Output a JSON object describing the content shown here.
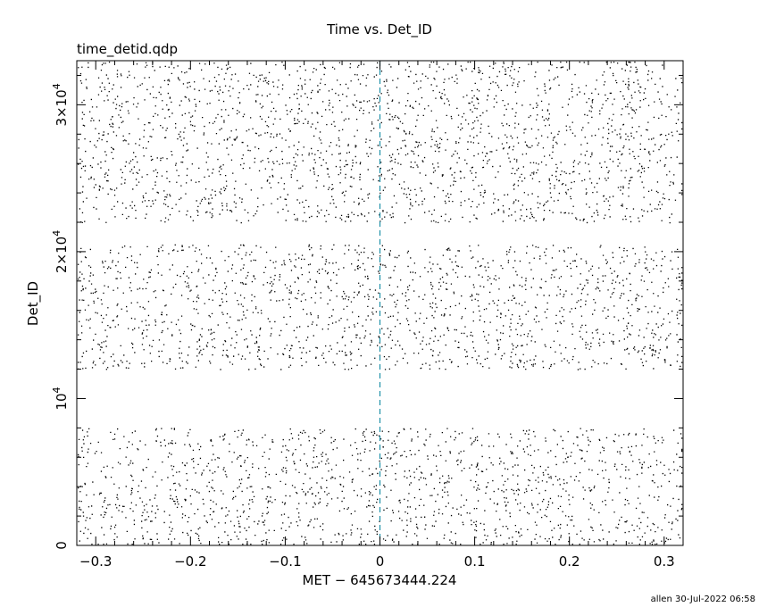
{
  "chart_data": {
    "type": "scatter",
    "title": "Time vs. Det_ID",
    "subtitle": "time_detid.qdp",
    "xlabel": "MET − 645673444.224",
    "ylabel": "Det_ID",
    "xlim": [
      -0.32,
      0.32
    ],
    "ylim": [
      0,
      33000
    ],
    "x_ticks": [
      {
        "value": -0.3,
        "label": "−0.3"
      },
      {
        "value": -0.2,
        "label": "−0.2"
      },
      {
        "value": -0.1,
        "label": "−0.1"
      },
      {
        "value": 0,
        "label": "0"
      },
      {
        "value": 0.1,
        "label": "0.1"
      },
      {
        "value": 0.2,
        "label": "0.2"
      },
      {
        "value": 0.3,
        "label": "0.3"
      }
    ],
    "y_ticks": [
      {
        "value": 0,
        "mant": "0",
        "exp": ""
      },
      {
        "value": 10000,
        "mant": "10",
        "exp": "4"
      },
      {
        "value": 20000,
        "mant": "2×10",
        "exp": "4"
      },
      {
        "value": 30000,
        "mant": "3×10",
        "exp": "4"
      }
    ],
    "detector_bands": [
      [
        0,
        8000
      ],
      [
        12000,
        20500
      ],
      [
        22000,
        33000
      ]
    ],
    "events_per_band": [
      1500,
      1650,
      2150
    ],
    "trigger_line": {
      "x": 0,
      "color": "#1e90a8"
    },
    "point_color": "#000000",
    "grid": false,
    "legend": false
  },
  "footer": "allen 30-Jul-2022 06:58"
}
